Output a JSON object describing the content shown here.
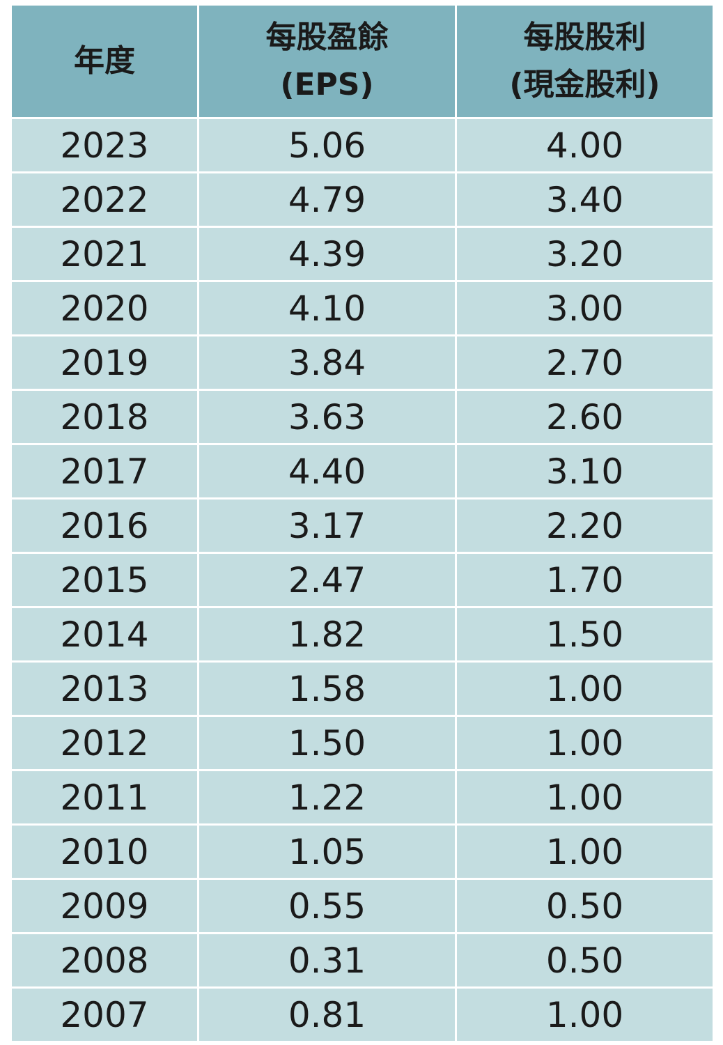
{
  "table": {
    "headers": [
      [
        "年度"
      ],
      [
        "每股盈餘",
        "(EPS)"
      ],
      [
        "每股股利",
        "(現金股利)"
      ]
    ],
    "rows": [
      [
        "2023",
        "5.06",
        "4.00"
      ],
      [
        "2022",
        "4.79",
        "3.40"
      ],
      [
        "2021",
        "4.39",
        "3.20"
      ],
      [
        "2020",
        "4.10",
        "3.00"
      ],
      [
        "2019",
        "3.84",
        "2.70"
      ],
      [
        "2018",
        "3.63",
        "2.60"
      ],
      [
        "2017",
        "4.40",
        "3.10"
      ],
      [
        "2016",
        "3.17",
        "2.20"
      ],
      [
        "2015",
        "2.47",
        "1.70"
      ],
      [
        "2014",
        "1.82",
        "1.50"
      ],
      [
        "2013",
        "1.58",
        "1.00"
      ],
      [
        "2012",
        "1.50",
        "1.00"
      ],
      [
        "2011",
        "1.22",
        "1.00"
      ],
      [
        "2010",
        "1.05",
        "1.00"
      ],
      [
        "2009",
        "0.55",
        "0.50"
      ],
      [
        "2008",
        "0.31",
        "0.50"
      ],
      [
        "2007",
        "0.81",
        "1.00"
      ]
    ]
  }
}
